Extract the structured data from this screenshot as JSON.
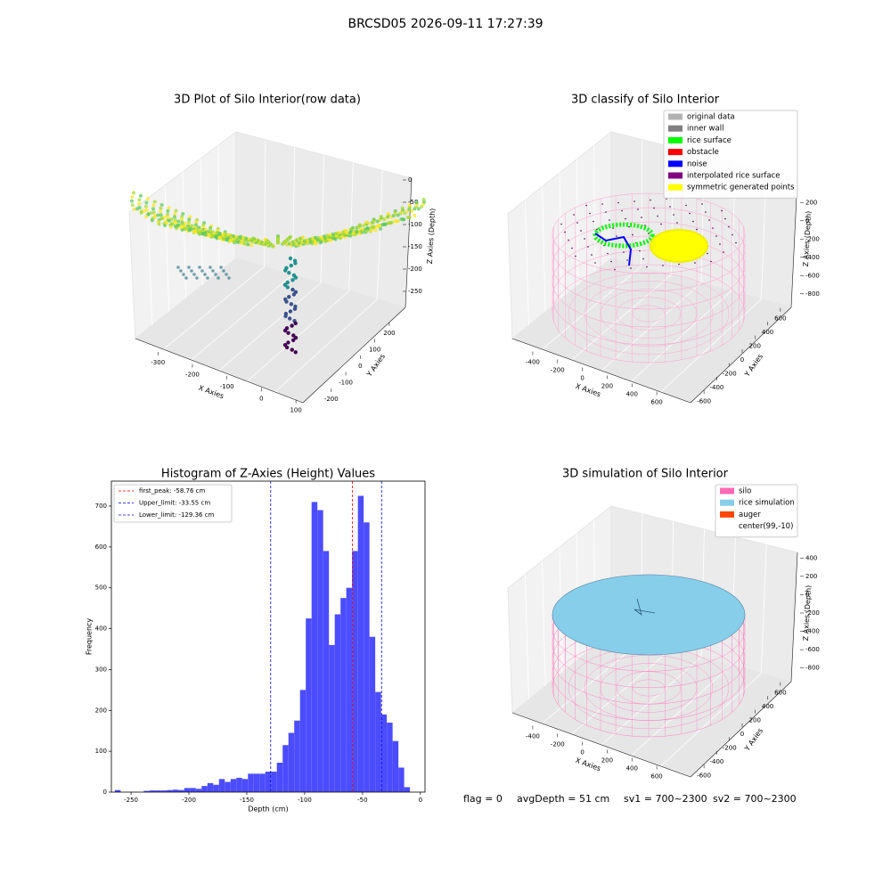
{
  "suptitle": "BRCSD05 2026-09-11 17:27:39",
  "status": [
    "flag = 0",
    "avgDepth = 51 cm",
    "sv1 = 700~2300",
    "sv2 = 700~2300"
  ],
  "chart_data": [
    {
      "type": "scatter3d",
      "title": "3D Plot of Silo Interior(row data)",
      "xlabel": "X Axies",
      "ylabel": "Y Axies",
      "zlabel": "Z Axies (Depth)",
      "xlim": [
        -360,
        110
      ],
      "ylim": [
        -260,
        280
      ],
      "zlim": [
        -280,
        10
      ],
      "xticks": [
        -300,
        -200,
        -100,
        0,
        100
      ],
      "yticks": [
        -200,
        -100,
        0,
        100,
        200
      ],
      "zticks": [
        0,
        -50,
        -100,
        -150,
        -200,
        -250
      ]
    },
    {
      "type": "scatter3d",
      "title": "3D classify of Silo Interior",
      "xlabel": "X Axies",
      "ylabel": "Y Axies",
      "zlabel": "Z Axies (Depth)",
      "xlim": [
        -500,
        700
      ],
      "ylim": [
        -700,
        700
      ],
      "zlim": [
        -900,
        300
      ],
      "xticks": [
        -400,
        -200,
        0,
        200,
        400,
        600
      ],
      "yticks": [
        -600,
        -400,
        -200,
        0,
        200,
        400,
        600
      ],
      "zticks": [
        200,
        0,
        -200,
        -400,
        -600,
        -800
      ],
      "legend_loc": "upper right",
      "legend": [
        {
          "name": "original data",
          "color": "#b3b3b3"
        },
        {
          "name": "inner wall",
          "color": "#808080"
        },
        {
          "name": "rice surface",
          "color": "#00ff00"
        },
        {
          "name": "obstacle",
          "color": "#ff0000"
        },
        {
          "name": "noise",
          "color": "#0000ff"
        },
        {
          "name": "interpolated rice surface",
          "color": "#800080"
        },
        {
          "name": "symmetric generated points",
          "color": "#ffff00"
        }
      ]
    },
    {
      "type": "histogram",
      "title": "Histogram of Z-Axies (Height) Values",
      "xlabel": "Depth (cm)",
      "ylabel": "Frequency",
      "color": "#4c4cff",
      "bins": [
        -264,
        -259,
        -254,
        -249,
        -244,
        -239,
        -234,
        -229,
        -224,
        -219,
        -214,
        -209,
        -204,
        -199,
        -194,
        -189,
        -184,
        -179,
        -174,
        -169,
        -164,
        -159,
        -154,
        -149,
        -144,
        -139,
        -134,
        -129,
        -124,
        -119,
        -114,
        -109,
        -104,
        -99,
        -94,
        -89,
        -84,
        -79,
        -74,
        -69,
        -64,
        -59,
        -54,
        -49,
        -44,
        -39,
        -34,
        -29,
        -24,
        -19,
        -14,
        -9
      ],
      "values": [
        5,
        0,
        0,
        0,
        0,
        3,
        4,
        4,
        4,
        5,
        6,
        5,
        10,
        10,
        8,
        15,
        22,
        18,
        32,
        25,
        32,
        35,
        32,
        45,
        45,
        45,
        50,
        50,
        72,
        115,
        145,
        175,
        250,
        425,
        710,
        690,
        590,
        360,
        435,
        475,
        500,
        590,
        725,
        660,
        380,
        245,
        190,
        170,
        125,
        60,
        12
      ],
      "xlim": [
        -267,
        4
      ],
      "ylim": [
        0,
        761
      ],
      "xticks": [
        -250,
        -200,
        -150,
        -100,
        -50,
        0
      ],
      "yticks": [
        0,
        100,
        200,
        300,
        400,
        500,
        600,
        700
      ],
      "legend_loc": "upper left",
      "lines": [
        {
          "label": "first_peak: -58.76 cm",
          "value": -58.76,
          "color": "#ff0000"
        },
        {
          "label": "Upper_limit: -33.55 cm",
          "value": -33.55,
          "color": "#0000ff"
        },
        {
          "label": "Lower_limit: -129.36 cm",
          "value": -129.36,
          "color": "#0000ff"
        }
      ]
    },
    {
      "type": "surface3d",
      "title": "3D simulation of Silo Interior",
      "xlabel": "X Axies",
      "ylabel": "Y Axies",
      "zlabel": "Z Axies (Depth)",
      "xlim": [
        -500,
        700
      ],
      "ylim": [
        -700,
        700
      ],
      "zlim": [
        -900,
        500
      ],
      "xticks": [
        -400,
        -200,
        0,
        200,
        400,
        600
      ],
      "yticks": [
        -600,
        -400,
        -200,
        0,
        200,
        400,
        600
      ],
      "zticks": [
        400,
        200,
        0,
        -200,
        -400,
        -600,
        -800
      ],
      "legend_loc": "upper right",
      "legend": [
        {
          "name": "silo",
          "color": "#ff69b4"
        },
        {
          "name": "rice simulation",
          "color": "#87ceeb"
        },
        {
          "name": "auger",
          "color": "#ff4500"
        },
        {
          "name": "center(99,-10)",
          "color": "#ffffff"
        }
      ]
    }
  ]
}
